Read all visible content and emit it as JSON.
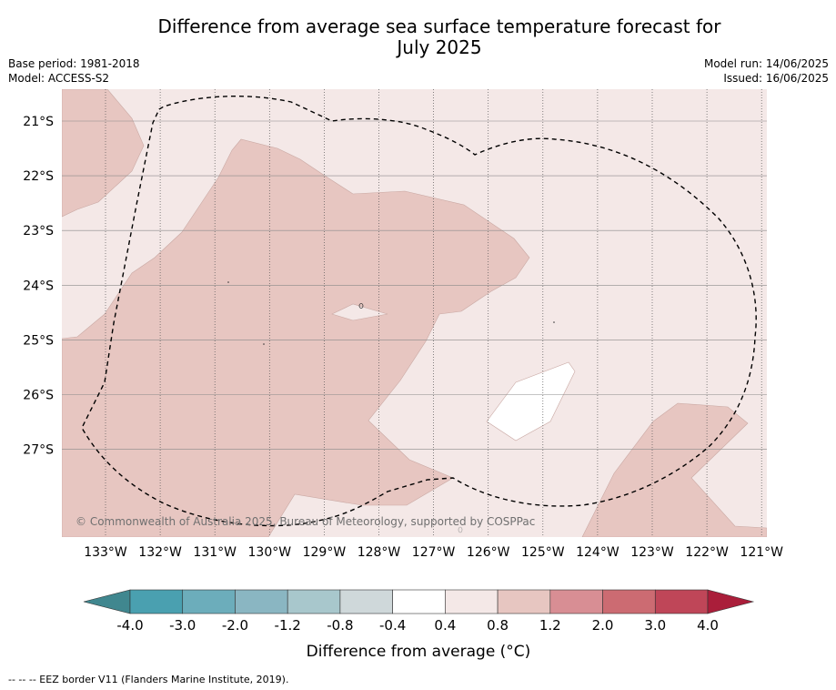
{
  "title_line1": "Difference from average sea surface temperature forecast for",
  "title_line2": "July 2025",
  "base_period": "Base period: 1981-2018",
  "model": "Model: ACCESS-S2",
  "model_run": "Model run: 14/06/2025",
  "issued": "Issued: 16/06/2025",
  "lat_labels": [
    "21°S",
    "22°S",
    "23°S",
    "24°S",
    "25°S",
    "26°S",
    "27°S"
  ],
  "lon_labels": [
    "133°W",
    "132°W",
    "131°W",
    "130°W",
    "129°W",
    "128°W",
    "127°W",
    "126°W",
    "125°W",
    "124°W",
    "123°W",
    "122°W",
    "121°W"
  ],
  "copyright": "© Commonwealth of Australia 2025, Bureau of Meteorology, supported by COSPPac",
  "legend": {
    "title": "Difference from average (°C)",
    "tick_labels": [
      "-4.0",
      "-3.0",
      "-2.0",
      "-1.2",
      "-0.8",
      "-0.4",
      "0.4",
      "0.8",
      "1.2",
      "2.0",
      "3.0",
      "4.0"
    ],
    "colors": [
      "#40878f",
      "#4aa0b0",
      "#6cadbb",
      "#8ab6c2",
      "#a8c7cc",
      "#cfd8da",
      "#ffffff",
      "#f4e8e7",
      "#e7c6c1",
      "#d88e94",
      "#cc6b72",
      "#bf4658",
      "#aa1e3a"
    ]
  },
  "map_colors": {
    "band_0_4_to_0_8": "#f4e8e7",
    "band_0_8_to_1_2": "#e7c6c1",
    "band_neutral": "#ffffff"
  },
  "footer": "--  --  -- EEZ border V11 (Flanders Marine Institute, 2019)."
}
